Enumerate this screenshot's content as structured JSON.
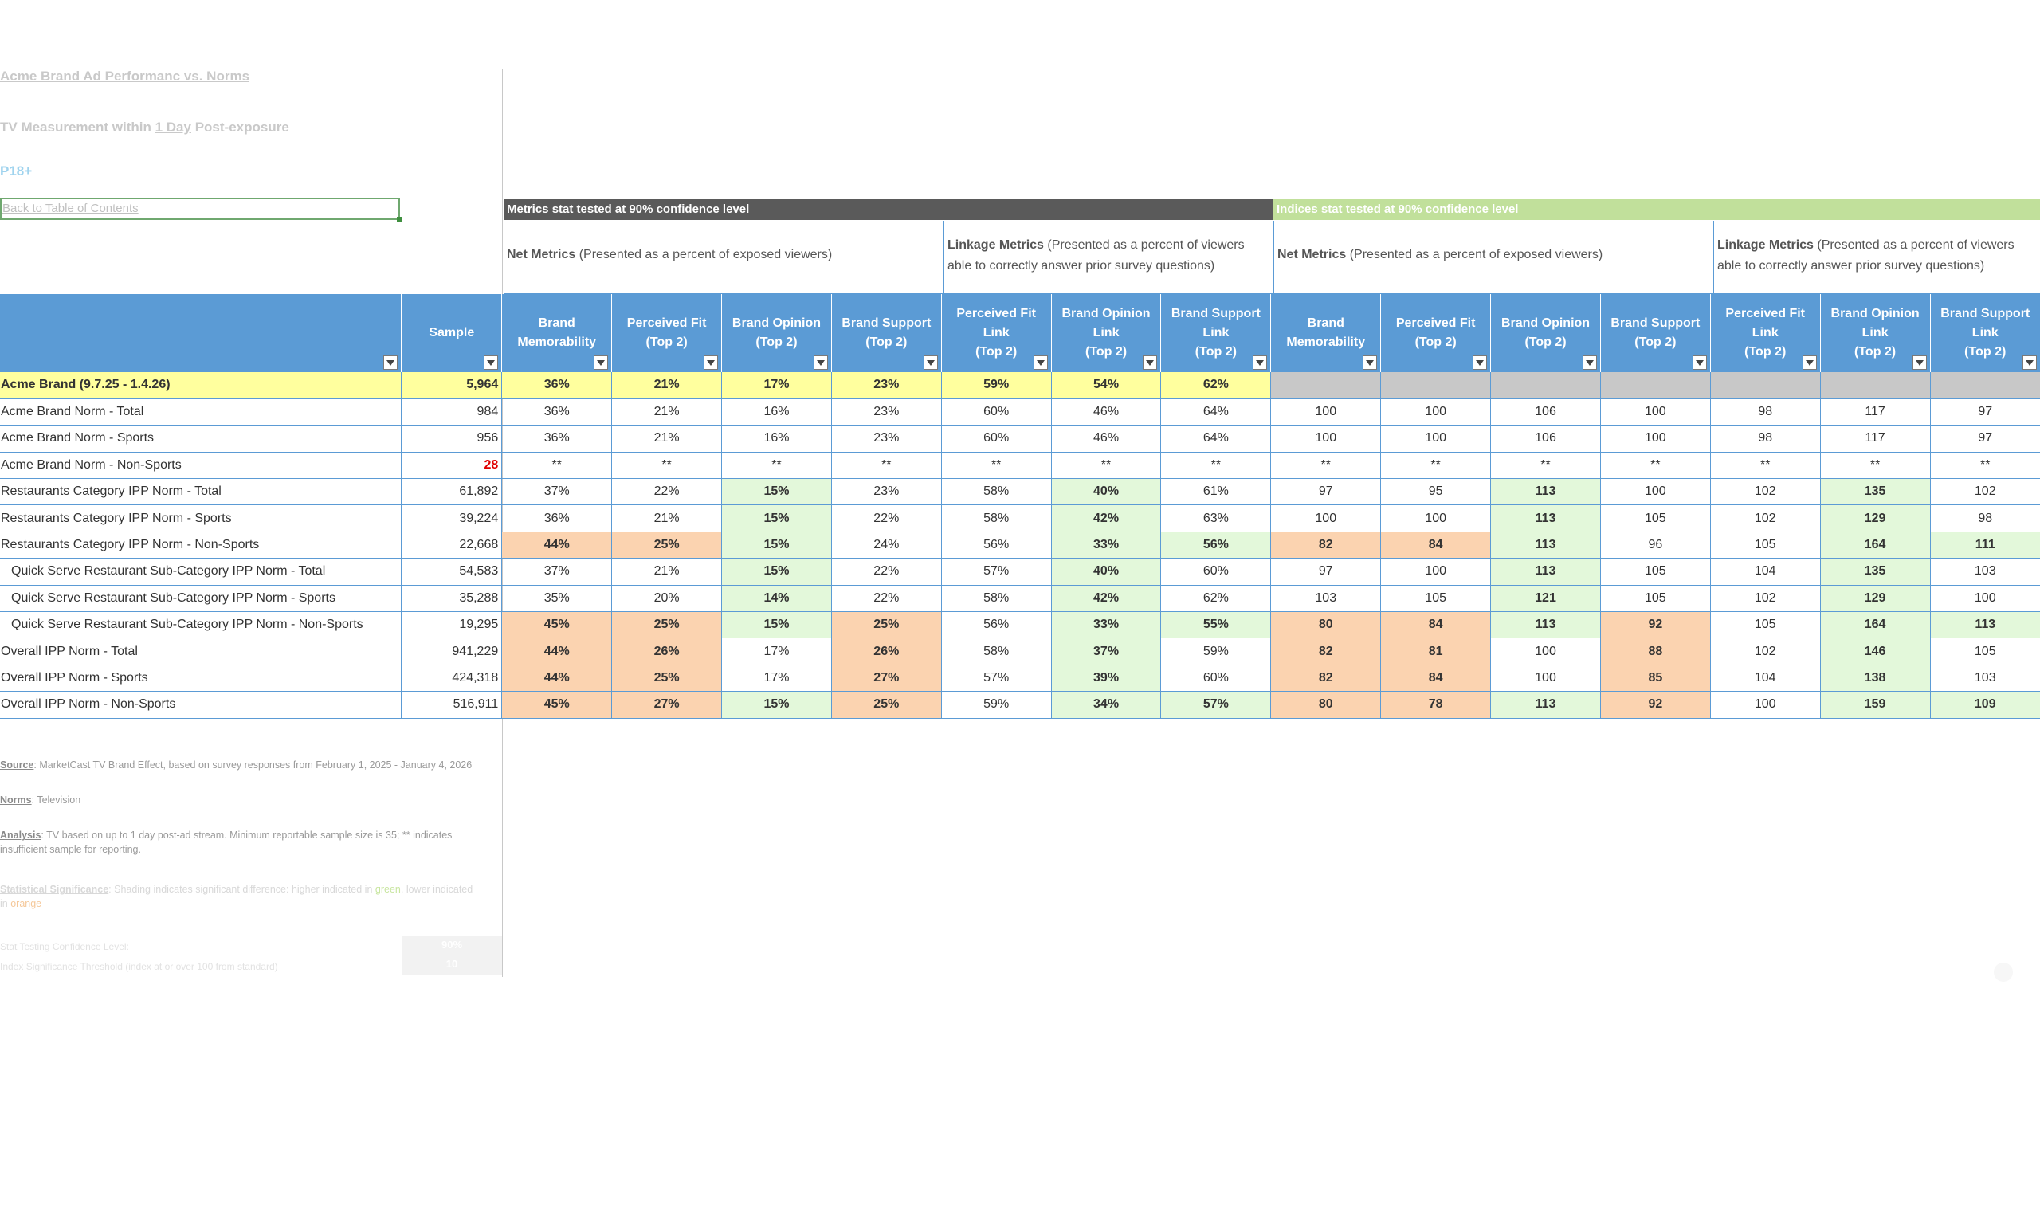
{
  "report": {
    "title": "Acme Brand Ad Performanc vs. Norms",
    "measure_prefix": "TV Measurement within ",
    "measure_link": "1 Day",
    "measure_suffix": " Post-exposure",
    "demo": "P18+",
    "back_link": "Back to Table of Contents"
  },
  "bands": {
    "metrics": "Metrics stat tested at 90% confidence level",
    "indices": "Indices stat tested at 90% confidence level"
  },
  "groups": {
    "net_bold": "Net Metrics",
    "net_rest": " (Presented as a percent of exposed viewers)",
    "link_bold": "Linkage Metrics",
    "link_rest": " (Presented as a percent of viewers able to correctly answer prior survey questions)"
  },
  "headers": {
    "sample": "Sample",
    "cols": [
      [
        "Brand",
        "Memorability"
      ],
      [
        "Perceived Fit",
        "(Top 2)"
      ],
      [
        "Brand Opinion",
        "(Top 2)"
      ],
      [
        "Brand Support",
        "(Top 2)"
      ],
      [
        "Perceived Fit",
        "Link",
        "(Top 2)"
      ],
      [
        "Brand Opinion",
        "Link",
        "(Top 2)"
      ],
      [
        "Brand Support",
        "Link",
        "(Top 2)"
      ]
    ]
  },
  "rows": [
    {
      "label": "Acme Brand (9.7.25 - 1.4.26)",
      "sample": "5,964",
      "m": [
        "36%",
        "21%",
        "17%",
        "23%",
        "59%",
        "54%",
        "62%"
      ],
      "i": [
        "",
        "",
        "",
        "",
        "",
        "",
        ""
      ]
    },
    {
      "label": "Acme Brand  Norm - Total",
      "sample": "984",
      "m": [
        "36%",
        "21%",
        "16%",
        "23%",
        "60%",
        "46%",
        "64%"
      ],
      "i": [
        "100",
        "100",
        "106",
        "100",
        "98",
        "117",
        "97"
      ]
    },
    {
      "label": "Acme Brand Norm - Sports",
      "sample": "956",
      "m": [
        "36%",
        "21%",
        "16%",
        "23%",
        "60%",
        "46%",
        "64%"
      ],
      "i": [
        "100",
        "100",
        "106",
        "100",
        "98",
        "117",
        "97"
      ]
    },
    {
      "label": "Acme Brand  Norm - Non-Sports",
      "sample": "28",
      "m": [
        "**",
        "**",
        "**",
        "**",
        "**",
        "**",
        "**"
      ],
      "i": [
        "**",
        "**",
        "**",
        "**",
        "**",
        "**",
        "**"
      ]
    },
    {
      "label": "Restaurants Category IPP Norm - Total",
      "sample": "61,892",
      "m": [
        "37%",
        "22%",
        "15%",
        "23%",
        "58%",
        "40%",
        "61%"
      ],
      "i": [
        "97",
        "95",
        "113",
        "100",
        "102",
        "135",
        "102"
      ]
    },
    {
      "label": "Restaurants Category IPP Norm - Sports",
      "sample": "39,224",
      "m": [
        "36%",
        "21%",
        "15%",
        "22%",
        "58%",
        "42%",
        "63%"
      ],
      "i": [
        "100",
        "100",
        "113",
        "105",
        "102",
        "129",
        "98"
      ]
    },
    {
      "label": "Restaurants Category IPP Norm - Non-Sports",
      "sample": "22,668",
      "m": [
        "44%",
        "25%",
        "15%",
        "24%",
        "56%",
        "33%",
        "56%"
      ],
      "i": [
        "82",
        "84",
        "113",
        "96",
        "105",
        "164",
        "111"
      ]
    },
    {
      "label": "Quick Serve Restaurant Sub-Category IPP Norm - Total",
      "sample": "54,583",
      "m": [
        "37%",
        "21%",
        "15%",
        "22%",
        "57%",
        "40%",
        "60%"
      ],
      "i": [
        "97",
        "100",
        "113",
        "105",
        "104",
        "135",
        "103"
      ]
    },
    {
      "label": "Quick Serve Restaurant Sub-Category IPP Norm - Sports",
      "sample": "35,288",
      "m": [
        "35%",
        "20%",
        "14%",
        "22%",
        "58%",
        "42%",
        "62%"
      ],
      "i": [
        "103",
        "105",
        "121",
        "105",
        "102",
        "129",
        "100"
      ]
    },
    {
      "label": "Quick Serve Restaurant Sub-Category IPP Norm - Non-Sports",
      "sample": "19,295",
      "m": [
        "45%",
        "25%",
        "15%",
        "25%",
        "56%",
        "33%",
        "55%"
      ],
      "i": [
        "80",
        "84",
        "113",
        "92",
        "105",
        "164",
        "113"
      ]
    },
    {
      "label": "Overall IPP Norm - Total",
      "sample": "941,229",
      "m": [
        "44%",
        "26%",
        "17%",
        "26%",
        "58%",
        "37%",
        "59%"
      ],
      "i": [
        "82",
        "81",
        "100",
        "88",
        "102",
        "146",
        "105"
      ]
    },
    {
      "label": "Overall IPP Norm - Sports",
      "sample": "424,318",
      "m": [
        "44%",
        "25%",
        "17%",
        "27%",
        "57%",
        "39%",
        "60%"
      ],
      "i": [
        "82",
        "84",
        "100",
        "85",
        "104",
        "138",
        "103"
      ]
    },
    {
      "label": "Overall IPP Norm - Non-Sports",
      "sample": "516,911",
      "m": [
        "45%",
        "27%",
        "15%",
        "25%",
        "59%",
        "34%",
        "57%"
      ],
      "i": [
        "80",
        "78",
        "113",
        "92",
        "100",
        "159",
        "109"
      ]
    }
  ],
  "shading": {
    "m": [
      "yyyyyyy",
      ".......",
      ".......",
      ".......",
      "..g..g.",
      "..g..g.",
      "oog..gg",
      "..g..g.",
      "..g..g.",
      "oogo.gg",
      "oo.o.g.",
      "oo.o.g.",
      "oogo.gg"
    ],
    "i": [
      "kkkkkkk",
      ".......",
      ".......",
      ".......",
      "..g..g.",
      "..g..g.",
      "oog..gg",
      "..g..g.",
      "..g..g.",
      "oogo.gg",
      "oo.o.g.",
      "oo.o.g.",
      "oogo.gg"
    ]
  },
  "notes": {
    "source_label": "Source",
    "source_text": ": MarketCast TV Brand Effect, based on survey responses from February 1, 2025 - January 4, 2026",
    "norms_label": "Norms",
    "norms_text": ": Television",
    "analysis_label": "Analysis",
    "analysis_text": ": TV based on up to 1 day post-ad stream.  Minimum reportable sample size is 35; ** indicates insufficient sample for reporting.",
    "stat_label": "Statistical Significance",
    "stat_text_a": ": Shading indicates significant difference: higher indicated in ",
    "stat_green": "green",
    "stat_text_b": ", lower indicated in ",
    "stat_orange": "orange",
    "conf_label": "Stat Testing Confidence Level:",
    "conf_value": "90%",
    "index_label": "Index Significance Threshold (index at or over 100 from standard)",
    "index_value": "10"
  },
  "colors": {
    "header_blue": "#5b9bd5",
    "band_dark": "#5a5a5a",
    "band_green": "#c1e09b",
    "sig_green": "#e3f8da",
    "sig_orange": "#fbd3b0",
    "highlight_yellow": "#ffff9e"
  }
}
